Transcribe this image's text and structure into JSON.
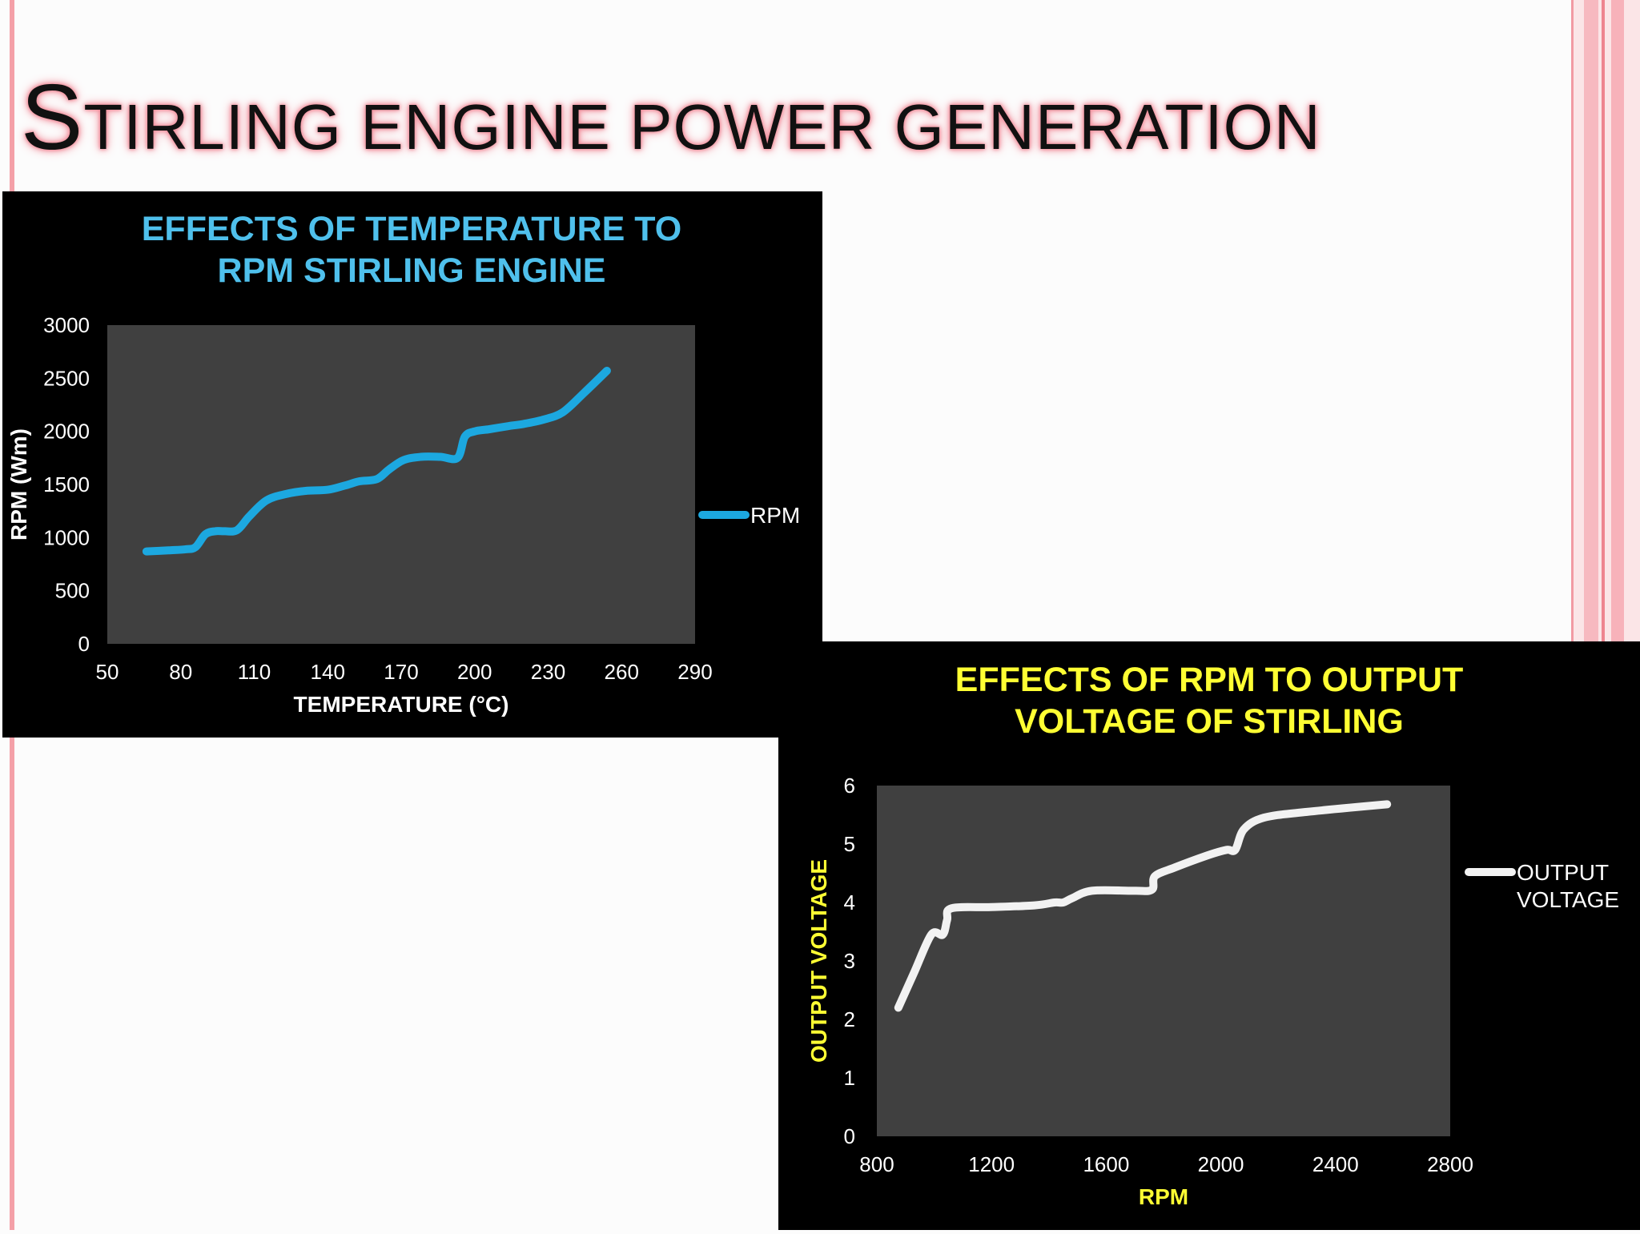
{
  "slide": {
    "title_first_letter": "S",
    "title_rest": "TIRLING ENGINE POWER GENERATION"
  },
  "colors": {
    "accent_pink": "#f4a0a8",
    "chart1_line": "#1ca8e0",
    "chart1_title": "#4fc0ec",
    "chart2_line": "#f2f2f2",
    "chart2_title": "#ffff33",
    "plot_background": "#404040"
  },
  "chart_data": [
    {
      "type": "line",
      "title_lines": [
        "EFFECTS OF TEMPERATURE TO",
        "RPM STIRLING ENGINE"
      ],
      "xlabel": "TEMPERATURE (°C)",
      "ylabel": "RPM (Wm)",
      "xlim": [
        50,
        290
      ],
      "ylim": [
        0,
        3000
      ],
      "xticks": [
        50,
        80,
        110,
        140,
        170,
        200,
        230,
        260,
        290
      ],
      "yticks": [
        0,
        500,
        1000,
        1500,
        2000,
        2500,
        3000
      ],
      "grid": false,
      "legend_position": "right",
      "series": [
        {
          "name": "RPM",
          "x": [
            66,
            75,
            82,
            86,
            90,
            94,
            98,
            103,
            108,
            115,
            123,
            131,
            140,
            147,
            153,
            160,
            165,
            171,
            178,
            186,
            193,
            196,
            200,
            206,
            214,
            220,
            228,
            236,
            245,
            254
          ],
          "y": [
            870,
            880,
            890,
            910,
            1030,
            1060,
            1060,
            1070,
            1200,
            1350,
            1410,
            1440,
            1450,
            1490,
            1530,
            1550,
            1640,
            1730,
            1760,
            1760,
            1750,
            1950,
            2000,
            2020,
            2050,
            2070,
            2110,
            2180,
            2370,
            2570
          ]
        }
      ]
    },
    {
      "type": "line",
      "title_lines": [
        "EFFECTS OF RPM TO OUTPUT",
        "VOLTAGE OF STIRLING"
      ],
      "xlabel": "RPM",
      "ylabel": "OUTPUT VOLTAGE",
      "xlim": [
        800,
        2800
      ],
      "ylim": [
        0,
        6
      ],
      "xticks": [
        800,
        1200,
        1600,
        2000,
        2400,
        2800
      ],
      "yticks": [
        0,
        1,
        2,
        3,
        4,
        5,
        6
      ],
      "grid": false,
      "legend_position": "right",
      "series": [
        {
          "name_lines": [
            "OUTPUT",
            "VOLTAGE"
          ],
          "x": [
            875,
            930,
            990,
            1030,
            1045,
            1060,
            1200,
            1350,
            1420,
            1450,
            1480,
            1550,
            1700,
            1760,
            1770,
            1840,
            1950,
            2020,
            2050,
            2080,
            2150,
            2300,
            2580
          ],
          "y": [
            2.2,
            2.8,
            3.45,
            3.45,
            3.7,
            3.9,
            3.92,
            3.95,
            4.0,
            4.0,
            4.07,
            4.2,
            4.2,
            4.22,
            4.45,
            4.6,
            4.8,
            4.9,
            4.9,
            5.25,
            5.45,
            5.55,
            5.68
          ]
        }
      ]
    }
  ]
}
